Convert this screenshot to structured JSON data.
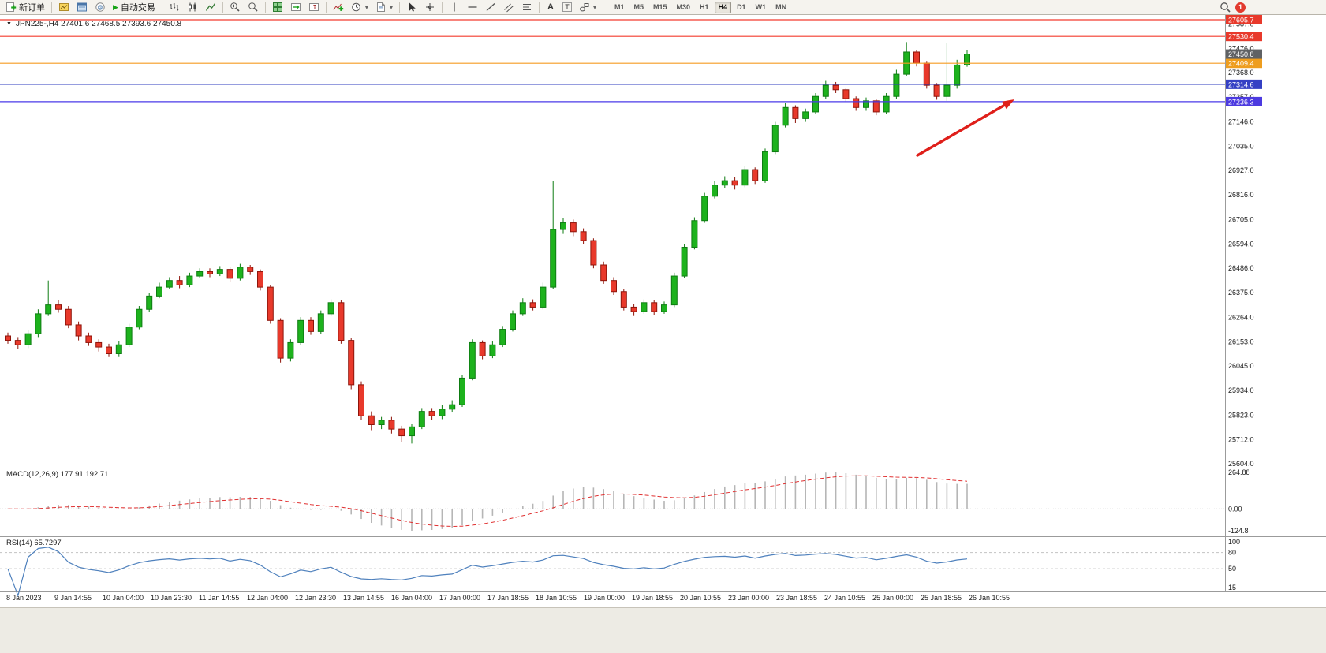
{
  "toolbar": {
    "new_order_label": "新订单",
    "autotrading_label": "自动交易",
    "timeframes": [
      "M1",
      "M5",
      "M15",
      "M30",
      "H1",
      "H4",
      "D1",
      "W1",
      "MN"
    ],
    "active_timeframe": "H4",
    "notification_count": "1"
  },
  "chart": {
    "symbol_header": "JPN225-,H4 27401.6 27468.5 27393.6 27450.8",
    "bull_color": "#1db21d",
    "bear_color": "#e8392b",
    "arrow_color": "#df1f1a",
    "price_axis_labels": [
      "27587.0",
      "27476.0",
      "27368.0",
      "27257.0",
      "27146.0",
      "27035.0",
      "26927.0",
      "26816.0",
      "26705.0",
      "26594.0",
      "26486.0",
      "26375.0",
      "26264.0",
      "26153.0",
      "26045.0",
      "25934.0",
      "25823.0",
      "25712.0",
      "25604.0"
    ],
    "price_lines": [
      {
        "price": 27605.7,
        "label": "27605.7",
        "line_color": "#f43b2e",
        "badge_color": "#e8392b"
      },
      {
        "price": 27530.4,
        "label": "27530.4",
        "line_color": "#f43b2e",
        "badge_color": "#e8392b"
      },
      {
        "price": 27409.4,
        "label": "27409.4",
        "line_color": "#f59b22",
        "badge_color": "#ee9d1e"
      },
      {
        "price": 27314.6,
        "label": "27314.6",
        "line_color": "#2e3bbf",
        "badge_color": "#3440c4"
      },
      {
        "price": 27236.3,
        "label": "27236.3",
        "line_color": "#4a3ae8",
        "badge_color": "#4c3ae0"
      }
    ],
    "current_price_badge": {
      "price": 27450.8,
      "label": "27450.8",
      "badge_color": "#5f6164"
    },
    "time_axis_labels": [
      "8 Jan 2023",
      "9 Jan 14:55",
      "10 Jan 04:00",
      "10 Jan 23:30",
      "11 Jan 14:55",
      "12 Jan 04:00",
      "12 Jan 23:30",
      "13 Jan 14:55",
      "16 Jan 04:00",
      "17 Jan 00:00",
      "17 Jan 18:55",
      "18 Jan 10:55",
      "19 Jan 00:00",
      "19 Jan 18:55",
      "20 Jan 10:55",
      "23 Jan 00:00",
      "23 Jan 18:55",
      "24 Jan 10:55",
      "25 Jan 00:00",
      "25 Jan 18:55",
      "26 Jan 10:55"
    ]
  },
  "indicators": {
    "macd": {
      "label": "MACD(12,26,9) 177.91 192.71",
      "axis_labels": [
        "264.88",
        "0.00",
        "-124.8"
      ]
    },
    "rsi": {
      "label": "RSI(14) 65.7297",
      "axis_labels": [
        "100",
        "80",
        "50",
        "15"
      ],
      "levels": [
        80,
        50
      ],
      "line_color": "#4f81bd"
    }
  },
  "chart_data": {
    "type": "candlestick",
    "symbol": "JPN225-",
    "timeframe": "H4",
    "last_ohlc": {
      "open": 27401.6,
      "high": 27468.5,
      "low": 27393.6,
      "close": 27450.8
    },
    "candles": [
      [
        26180,
        26195,
        26145,
        26160
      ],
      [
        26160,
        26175,
        26120,
        26140
      ],
      [
        26140,
        26205,
        26125,
        26190
      ],
      [
        26190,
        26300,
        26175,
        26280
      ],
      [
        26280,
        26430,
        26270,
        26320
      ],
      [
        26320,
        26340,
        26285,
        26300
      ],
      [
        26300,
        26315,
        26215,
        26230
      ],
      [
        26230,
        26245,
        26160,
        26180
      ],
      [
        26180,
        26195,
        26135,
        26150
      ],
      [
        26150,
        26165,
        26110,
        26130
      ],
      [
        26130,
        26145,
        26085,
        26100
      ],
      [
        26100,
        26155,
        26085,
        26140
      ],
      [
        26140,
        26235,
        26130,
        26220
      ],
      [
        26220,
        26315,
        26210,
        26300
      ],
      [
        26300,
        26375,
        26290,
        26360
      ],
      [
        26360,
        26420,
        26350,
        26400
      ],
      [
        26400,
        26445,
        26390,
        26430
      ],
      [
        26430,
        26450,
        26395,
        26410
      ],
      [
        26410,
        26465,
        26400,
        26450
      ],
      [
        26450,
        26485,
        26440,
        26470
      ],
      [
        26470,
        26485,
        26445,
        26460
      ],
      [
        26460,
        26495,
        26450,
        26480
      ],
      [
        26480,
        26490,
        26425,
        26440
      ],
      [
        26440,
        26505,
        26430,
        26490
      ],
      [
        26490,
        26500,
        26455,
        26470
      ],
      [
        26470,
        26480,
        26385,
        26400
      ],
      [
        26400,
        26410,
        26235,
        26250
      ],
      [
        26250,
        26260,
        26060,
        26080
      ],
      [
        26080,
        26165,
        26065,
        26150
      ],
      [
        26150,
        26265,
        26140,
        26250
      ],
      [
        26250,
        26265,
        26185,
        26200
      ],
      [
        26200,
        26295,
        26190,
        26280
      ],
      [
        26280,
        26345,
        26270,
        26330
      ],
      [
        26330,
        26340,
        26145,
        26160
      ],
      [
        26160,
        26170,
        25940,
        25960
      ],
      [
        25960,
        25975,
        25800,
        25820
      ],
      [
        25820,
        25840,
        25755,
        25780
      ],
      [
        25780,
        25815,
        25760,
        25800
      ],
      [
        25800,
        25815,
        25740,
        25760
      ],
      [
        25760,
        25775,
        25700,
        25730
      ],
      [
        25730,
        25785,
        25695,
        25770
      ],
      [
        25770,
        25855,
        25760,
        25840
      ],
      [
        25840,
        25855,
        25800,
        25820
      ],
      [
        25820,
        25870,
        25805,
        25850
      ],
      [
        25850,
        25890,
        25835,
        25870
      ],
      [
        25870,
        26005,
        25860,
        25990
      ],
      [
        25990,
        26165,
        25980,
        26150
      ],
      [
        26150,
        26160,
        26075,
        26090
      ],
      [
        26090,
        26155,
        26080,
        26140
      ],
      [
        26140,
        26225,
        26130,
        26210
      ],
      [
        26210,
        26295,
        26200,
        26280
      ],
      [
        26280,
        26350,
        26270,
        26330
      ],
      [
        26330,
        26345,
        26295,
        26310
      ],
      [
        26310,
        26420,
        26300,
        26400
      ],
      [
        26400,
        26880,
        26390,
        26660
      ],
      [
        26660,
        26710,
        26640,
        26690
      ],
      [
        26690,
        26705,
        26630,
        26650
      ],
      [
        26650,
        26665,
        26595,
        26610
      ],
      [
        26610,
        26620,
        26485,
        26500
      ],
      [
        26500,
        26515,
        26415,
        26430
      ],
      [
        26430,
        26445,
        26365,
        26380
      ],
      [
        26380,
        26390,
        26295,
        26310
      ],
      [
        26310,
        26325,
        26270,
        26290
      ],
      [
        26290,
        26345,
        26280,
        26330
      ],
      [
        26330,
        26340,
        26275,
        26290
      ],
      [
        26290,
        26335,
        26280,
        26320
      ],
      [
        26320,
        26465,
        26310,
        26450
      ],
      [
        26450,
        26595,
        26440,
        26580
      ],
      [
        26580,
        26715,
        26570,
        26700
      ],
      [
        26700,
        26825,
        26690,
        26810
      ],
      [
        26810,
        26880,
        26800,
        26860
      ],
      [
        26860,
        26900,
        26845,
        26880
      ],
      [
        26880,
        26895,
        26840,
        26860
      ],
      [
        26860,
        26945,
        26850,
        26930
      ],
      [
        26930,
        26940,
        26865,
        26880
      ],
      [
        26880,
        27025,
        26870,
        27010
      ],
      [
        27010,
        27145,
        27000,
        27130
      ],
      [
        27130,
        27230,
        27120,
        27210
      ],
      [
        27210,
        27220,
        27140,
        27160
      ],
      [
        27160,
        27205,
        27145,
        27190
      ],
      [
        27190,
        27275,
        27180,
        27260
      ],
      [
        27260,
        27330,
        27250,
        27310
      ],
      [
        27310,
        27325,
        27275,
        27290
      ],
      [
        27290,
        27300,
        27235,
        27250
      ],
      [
        27250,
        27260,
        27195,
        27210
      ],
      [
        27210,
        27255,
        27195,
        27240
      ],
      [
        27240,
        27250,
        27175,
        27190
      ],
      [
        27190,
        27275,
        27180,
        27260
      ],
      [
        27260,
        27380,
        27250,
        27360
      ],
      [
        27360,
        27505,
        27350,
        27460
      ],
      [
        27460,
        27470,
        27395,
        27410
      ],
      [
        27410,
        27420,
        27295,
        27310
      ],
      [
        27310,
        27320,
        27245,
        27260
      ],
      [
        27260,
        27500,
        27240,
        27310
      ],
      [
        27310,
        27425,
        27295,
        27401.6
      ],
      [
        27401.6,
        27468.5,
        27393.6,
        27450.8
      ]
    ]
  }
}
